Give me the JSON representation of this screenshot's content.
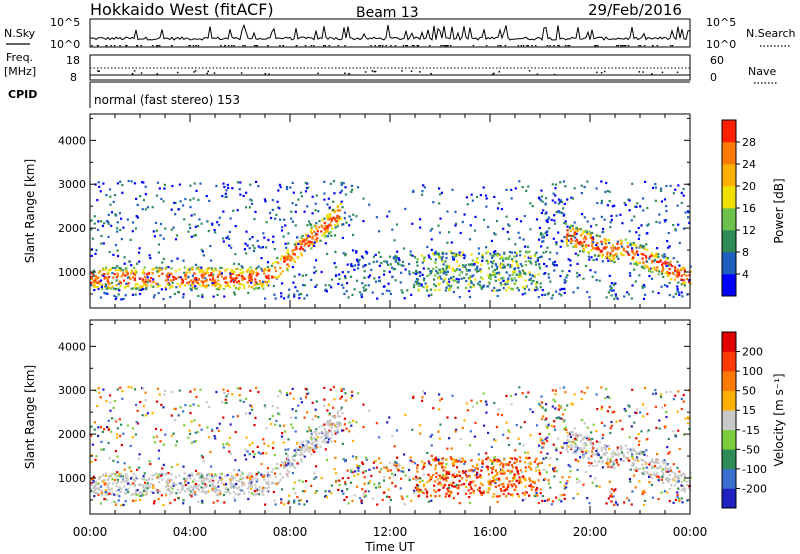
{
  "header": {
    "site": "Hokkaido West (fitACF)",
    "beam": "Beam 13",
    "date": "29/Feb/2016"
  },
  "top_panels": {
    "nsky_label": "N.Sky",
    "nsky_ticks": [
      "10^5",
      "10^0"
    ],
    "nsearch_ticks": [
      "10^5",
      "10^0"
    ],
    "nsearch_label": "N.Search",
    "freq_label_line1": "Freq.",
    "freq_label_line2": "[MHz]",
    "freq_ticks": [
      "18",
      "8"
    ],
    "nave_ticks": [
      "60",
      "0"
    ],
    "nave_label": "Nave",
    "cpid_label": "CPID",
    "mode_text": "normal (fast stereo) 153"
  },
  "chart_data": [
    {
      "type": "heatmap",
      "name": "power",
      "ylabel": "Slant Range [km]",
      "ylim": [
        180,
        4600
      ],
      "yticks": [
        "1000",
        "2000",
        "3000",
        "4000"
      ],
      "colorbar_label": "Power [dB]",
      "colorbar_ticks": [
        "4",
        "8",
        "12",
        "16",
        "20",
        "24",
        "28"
      ],
      "colorbar_colors": [
        "#0000ff",
        "#1f5fbf",
        "#2e8b57",
        "#6cc24a",
        "#f0e000",
        "#ffb000",
        "#ff7a00",
        "#ff2000"
      ],
      "grid": false
    },
    {
      "type": "heatmap",
      "name": "velocity",
      "ylabel": "Slant Range [km]",
      "ylim": [
        180,
        4600
      ],
      "yticks": [
        "1000",
        "2000",
        "3000",
        "4000"
      ],
      "colorbar_label": "Velocity [m s⁻¹]",
      "colorbar_ticks": [
        "200",
        "100",
        "50",
        "15",
        "-15",
        "-50",
        "-100",
        "-200"
      ],
      "colorbar_colors": [
        "#2020c0",
        "#3a6fd0",
        "#2e8b57",
        "#7ccd3c",
        "#c8c8c8",
        "#ffb000",
        "#ff7a00",
        "#ff3a00",
        "#e00000"
      ],
      "grid": false
    }
  ],
  "xaxis": {
    "label": "Time UT",
    "ticks": [
      "00:00",
      "04:00",
      "08:00",
      "12:00",
      "16:00",
      "20:00",
      "00:00"
    ],
    "xlim_hours": [
      0,
      24
    ]
  }
}
